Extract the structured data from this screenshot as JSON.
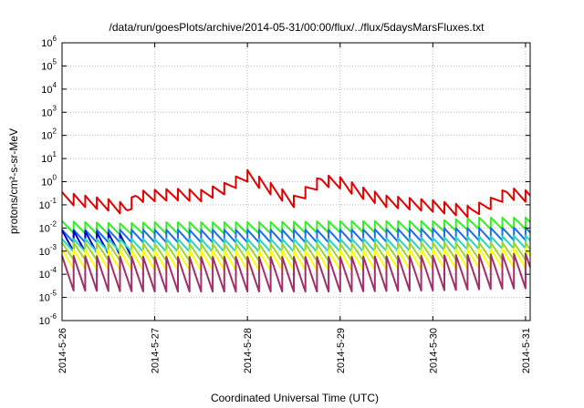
{
  "chart_data": {
    "type": "line",
    "title": "/data/run/goesPlots/archive/2014-05-31/00:00/flux/../flux/5daysMarsFluxes.txt",
    "xlabel": "Coordinated Universal Time (UTC)",
    "ylabel": "protons/cm²-s-sr-MeV",
    "yscale": "log",
    "grid": true,
    "xlim": [
      0,
      5.05
    ],
    "ylim_exp": [
      -6,
      6
    ],
    "x_tick_labels": [
      "2014-5-26",
      "2014-5-27",
      "2014-5-28",
      "2014-5-29",
      "2014-5-30",
      "2014-5-31"
    ],
    "y_tick_exponents": [
      -6,
      -5,
      -4,
      -3,
      -2,
      -1,
      0,
      1,
      2,
      3,
      4,
      5,
      6
    ],
    "y_tick_base": "10",
    "cycle_days": 0.125,
    "series": [
      {
        "color": "#e00000",
        "period": 0.125,
        "decay": 0.5,
        "x": [
          0,
          0.5,
          0.7,
          0.8,
          1.2,
          1.5,
          1.75,
          2.0,
          2.25,
          2.5,
          2.8,
          3.0,
          3.25,
          3.5,
          4.0,
          4.4,
          4.6,
          4.8,
          5.05
        ],
        "logy": [
          -0.7,
          -1.0,
          -1.2,
          -0.65,
          -0.55,
          -0.6,
          -0.3,
          0.25,
          -0.3,
          -0.85,
          0.05,
          -0.05,
          -0.5,
          -0.85,
          -1.05,
          -1.3,
          -1.0,
          -0.5,
          -0.65
        ]
      },
      {
        "color": "#33ee22",
        "period": 0.125,
        "decay": 0.5,
        "x": [
          0,
          0.6,
          1.0,
          2.0,
          3.0,
          4.0,
          4.5,
          5.05
        ],
        "logy": [
          -1.95,
          -2.05,
          -2.0,
          -2.0,
          -1.95,
          -1.95,
          -1.8,
          -1.8
        ]
      },
      {
        "color": "#1a6ee8",
        "period": 0.125,
        "decay": 0.55,
        "x": [
          0,
          1.0,
          2.0,
          3.0,
          4.0,
          5.05
        ],
        "logy": [
          -2.35,
          -2.35,
          -2.35,
          -2.35,
          -2.3,
          -2.25
        ]
      },
      {
        "color": "#0000c8",
        "period": 0.125,
        "decay": 0.9,
        "x": [
          0,
          0.3,
          0.6,
          0.75
        ],
        "logy": [
          -2.55,
          -2.6,
          -2.7,
          -2.8
        ]
      },
      {
        "color": "#2ad4c0",
        "period": 0.125,
        "decay": 0.55,
        "x": [
          0,
          1.0,
          2.0,
          3.0,
          4.0,
          5.05
        ],
        "logy": [
          -2.75,
          -2.75,
          -2.75,
          -2.75,
          -2.7,
          -2.6
        ]
      },
      {
        "color": "#9ed62a",
        "period": 0.125,
        "decay": 0.75,
        "x": [
          0,
          1.0,
          2.0,
          3.0,
          4.0,
          5.05
        ],
        "logy": [
          -3.0,
          -3.05,
          -3.05,
          -3.05,
          -3.0,
          -3.0
        ]
      },
      {
        "color": "#ffff00",
        "period": 0.125,
        "decay": 0.85,
        "x": [
          0,
          1.0,
          2.0,
          3.0,
          4.0,
          5.05
        ],
        "logy": [
          -3.35,
          -3.4,
          -3.4,
          -3.4,
          -3.35,
          -3.3
        ]
      },
      {
        "color": "#a0306a",
        "period": 0.125,
        "decay": 1.5,
        "x": [
          0,
          1.0,
          2.0,
          3.0,
          4.0,
          5.05
        ],
        "logy": [
          -3.95,
          -4.0,
          -4.0,
          -4.0,
          -3.95,
          -3.85
        ]
      }
    ]
  }
}
